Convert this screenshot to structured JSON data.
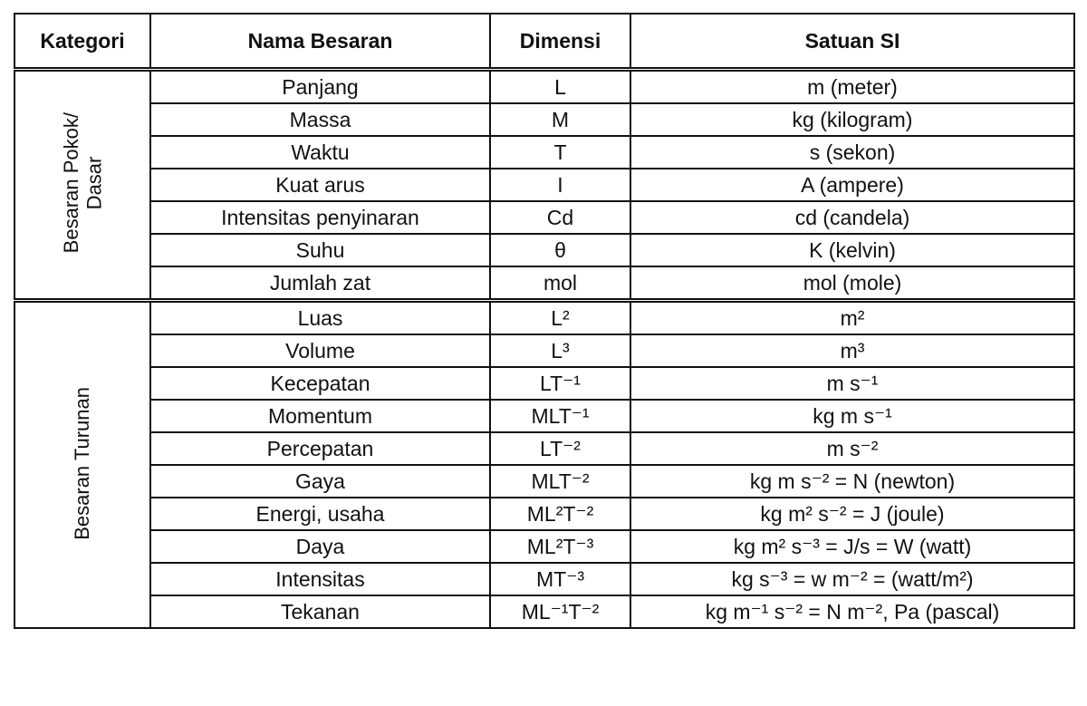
{
  "headers": [
    "Kategori",
    "Nama Besaran",
    "Dimensi",
    "Satuan SI"
  ],
  "groups": [
    {
      "category": "Besaran Pokok/\nDasar",
      "rows": [
        {
          "name": "Panjang",
          "dim": "L",
          "unit": "m (meter)"
        },
        {
          "name": "Massa",
          "dim": "M",
          "unit": "kg (kilogram)"
        },
        {
          "name": "Waktu",
          "dim": "T",
          "unit": "s (sekon)"
        },
        {
          "name": "Kuat arus",
          "dim": "I",
          "unit": "A (ampere)"
        },
        {
          "name": "Intensitas penyinaran",
          "dim": "Cd",
          "unit": "cd (candela)"
        },
        {
          "name": "Suhu",
          "dim": "θ",
          "unit": "K (kelvin)"
        },
        {
          "name": "Jumlah zat",
          "dim": "mol",
          "unit": "mol (mole)"
        }
      ]
    },
    {
      "category": "Besaran Turunan",
      "rows": [
        {
          "name": "Luas",
          "dim": "L²",
          "unit": "m²"
        },
        {
          "name": "Volume",
          "dim": "L³",
          "unit": "m³"
        },
        {
          "name": "Kecepatan",
          "dim": "LT⁻¹",
          "unit": "m s⁻¹"
        },
        {
          "name": "Momentum",
          "dim": "MLT⁻¹",
          "unit": "kg m s⁻¹"
        },
        {
          "name": "Percepatan",
          "dim": "LT⁻²",
          "unit": "m s⁻²"
        },
        {
          "name": "Gaya",
          "dim": "MLT⁻²",
          "unit": "kg m s⁻² = N (newton)"
        },
        {
          "name": "Energi, usaha",
          "dim": "ML²T⁻²",
          "unit": "kg m² s⁻² = J (joule)"
        },
        {
          "name": "Daya",
          "dim": "ML²T⁻³",
          "unit": "kg m² s⁻³ = J/s = W (watt)"
        },
        {
          "name": "Intensitas",
          "dim": "MT⁻³",
          "unit": "kg s⁻³ = w m⁻² = (watt/m²)"
        },
        {
          "name": "Tekanan",
          "dim": "ML⁻¹T⁻²",
          "unit": "kg m⁻¹ s⁻² = N m⁻², Pa (pascal)"
        }
      ]
    }
  ]
}
